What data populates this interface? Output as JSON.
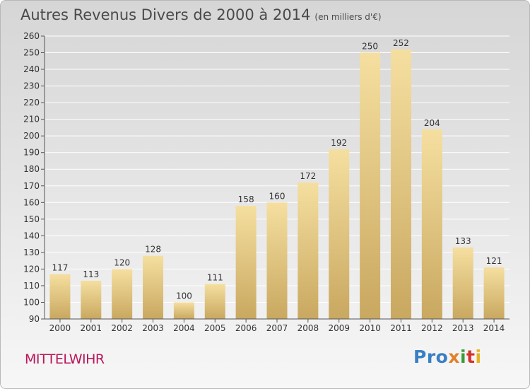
{
  "title": "Autres Revenus Divers de 2000 à 2014",
  "unit": "(en milliers d'€)",
  "city": "MITTELWIHR",
  "logo": [
    "Pro",
    "x",
    "i",
    "t",
    "i"
  ],
  "colors": {
    "bar_light": "#f5dfa0",
    "bar_dark": "#c9a860",
    "title": "#4a4a4a",
    "city": "#b8175a"
  },
  "chart_data": {
    "type": "bar",
    "categories": [
      "2000",
      "2001",
      "2002",
      "2003",
      "2004",
      "2005",
      "2006",
      "2007",
      "2008",
      "2009",
      "2010",
      "2011",
      "2012",
      "2013",
      "2014"
    ],
    "values": [
      117,
      113,
      120,
      128,
      100,
      111,
      158,
      160,
      172,
      192,
      250,
      252,
      204,
      133,
      121
    ],
    "ylim": [
      90,
      260
    ],
    "yticks": [
      90,
      100,
      110,
      120,
      130,
      140,
      150,
      160,
      170,
      180,
      190,
      200,
      210,
      220,
      230,
      240,
      250,
      260
    ],
    "grid": true
  }
}
